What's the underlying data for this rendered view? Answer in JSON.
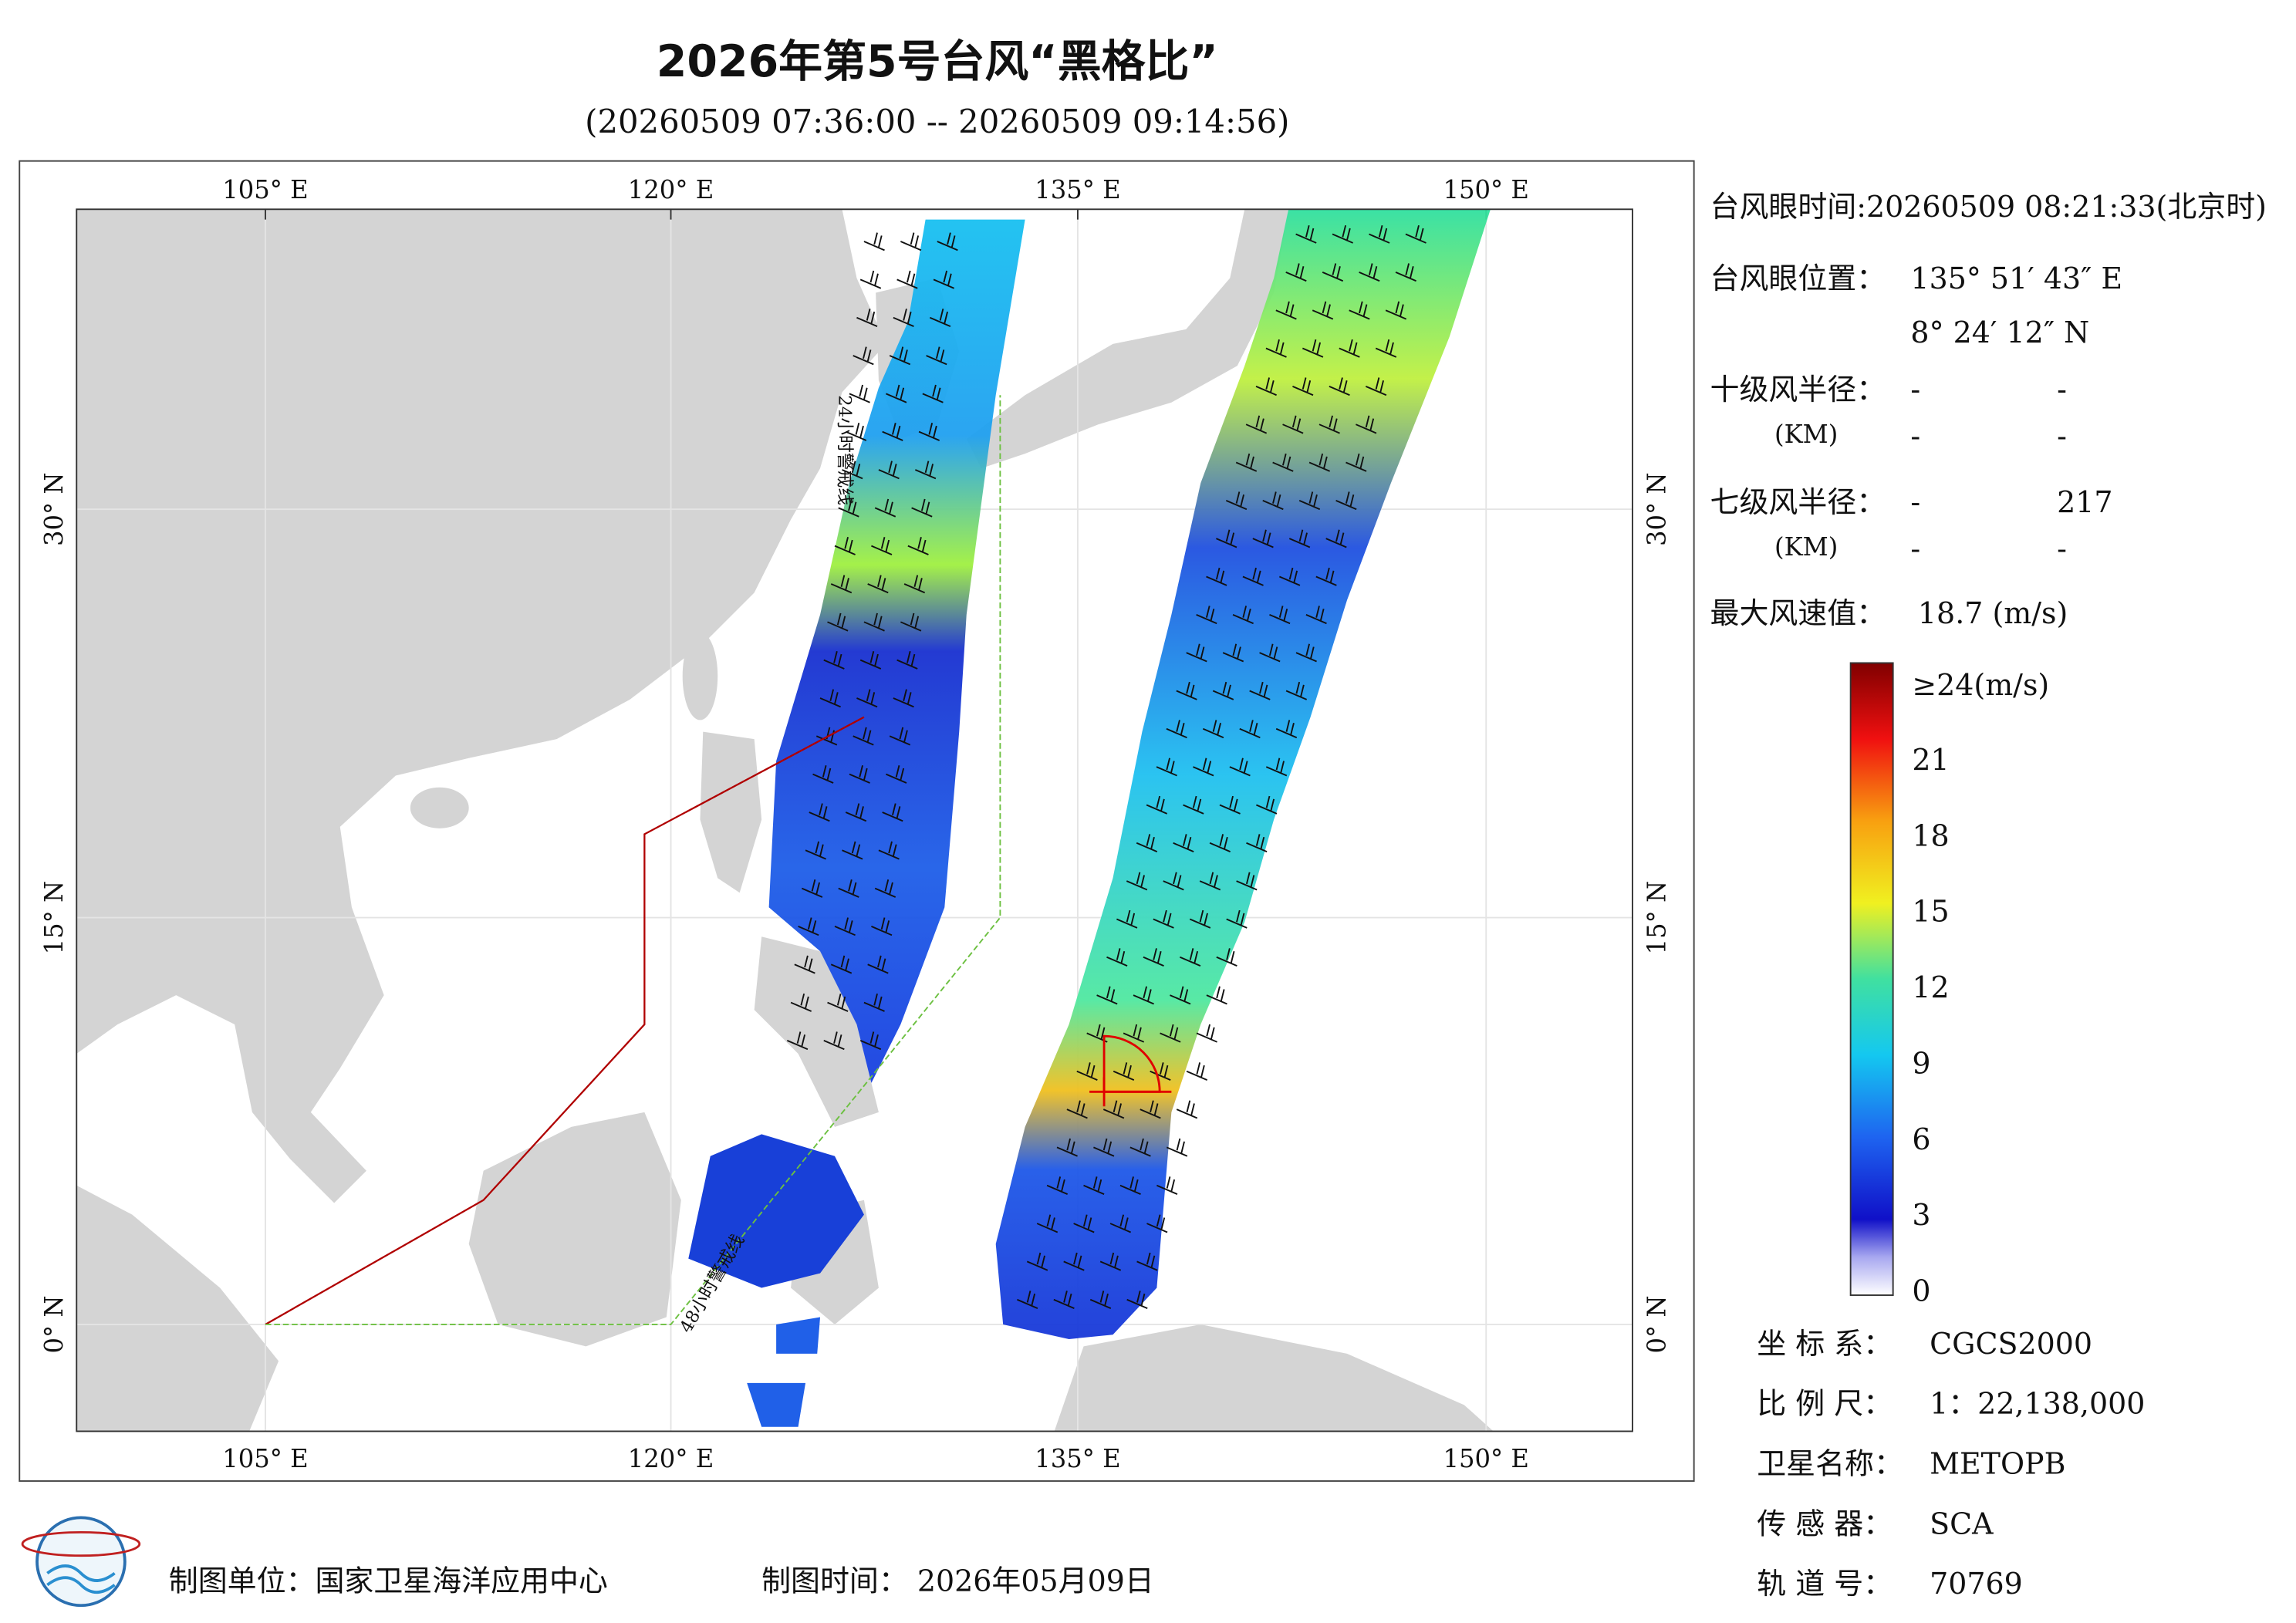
{
  "header": {
    "title": "2026年第5号台风“黑格比”",
    "subtitle": "(20260509 07:36:00 -- 20260509 09:14:56)"
  },
  "map": {
    "lon_ticks": [
      "105° E",
      "120° E",
      "135° E",
      "150° E"
    ],
    "lat_ticks": [
      "0° N",
      "15° N",
      "30° N"
    ],
    "warning_24h": "24小时警戒线",
    "warning_48h": "48小时警戒线"
  },
  "info": {
    "eye_time": "台风眼时间:20260509 08:21:33(北京时)",
    "eye_pos_label": "台风眼位置：",
    "eye_lon": "135° 51′ 43″ E",
    "eye_lat": "8° 24′ 12″ N",
    "r10_label": "十级风半径：",
    "r10_unit": "(KM)",
    "r10_values": [
      "-",
      "-",
      "-",
      "-"
    ],
    "r7_label": "七级风半径：",
    "r7_unit": "(KM)",
    "r7_values": [
      "-",
      "217",
      "-",
      "-"
    ],
    "vmax_label": "最大风速值：",
    "vmax": "18.7 (m/s)"
  },
  "colorbar": {
    "top_label": "≥24(m/s)",
    "ticks": [
      "21",
      "18",
      "15",
      "12",
      "9",
      "6",
      "3",
      "0"
    ]
  },
  "meta": {
    "rows": [
      [
        "坐 标 系：",
        "CGCS2000"
      ],
      [
        "比 例 尺：",
        "1：22,138,000"
      ],
      [
        "卫星名称：",
        "METOPB"
      ],
      [
        "传 感 器：",
        "SCA"
      ],
      [
        "轨 道 号：",
        "70769"
      ]
    ]
  },
  "footer": {
    "unit": "制图单位：国家卫星海洋应用中心",
    "time": "制图时间： 2026年05月09日"
  }
}
